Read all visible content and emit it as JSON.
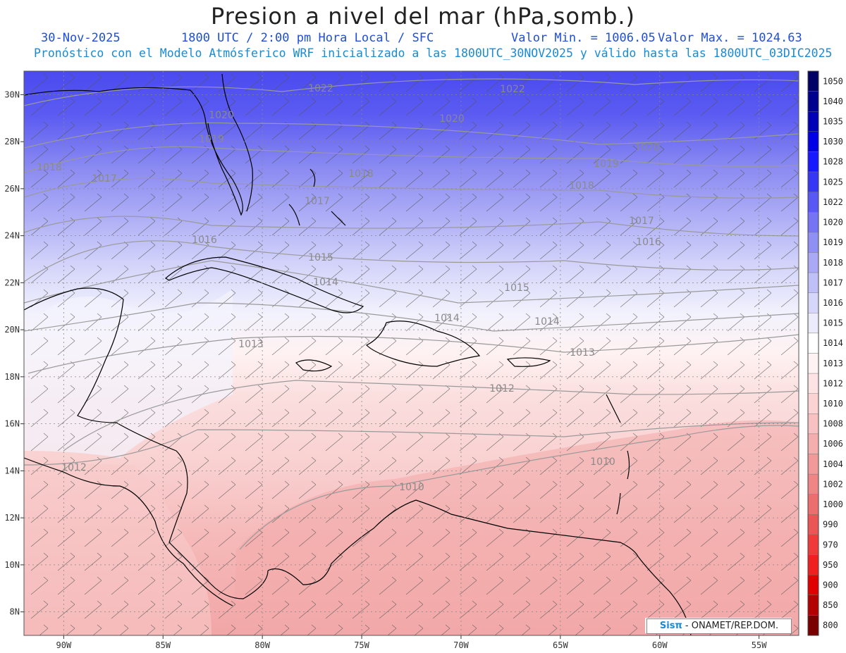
{
  "title": "Presion a nivel del mar (hPa,somb.)",
  "header": {
    "date": "30-Nov-2025",
    "time": "1800 UTC / 2:00 pm Hora Local / SFC",
    "min_label": "Valor Min. = 1006.05",
    "max_label": "Valor Max. = 1024.63",
    "forecast": "Pronóstico con el Modelo Atmósferico WRF inicializado a las 1800UTC_30NOV2025 y válido hasta las  1800UTC_03DIC2025"
  },
  "map": {
    "lat_range": [
      7,
      31
    ],
    "lon_range": [
      -92,
      -53
    ],
    "lat_ticks": [
      "30N",
      "28N",
      "26N",
      "24N",
      "22N",
      "20N",
      "18N",
      "16N",
      "14N",
      "12N",
      "10N",
      "8N"
    ],
    "lon_ticks": [
      "90W",
      "85W",
      "80W",
      "75W",
      "70W",
      "65W",
      "60W",
      "55W"
    ],
    "contour_labels": [
      "1022",
      "1022",
      "1020",
      "1020",
      "1020",
      "1019",
      "1019",
      "1018",
      "1018",
      "1018",
      "1017",
      "1017",
      "1017",
      "1016",
      "1016",
      "1015",
      "1015",
      "1014",
      "1014",
      "1014",
      "1013",
      "1013",
      "1012",
      "1012",
      "1010",
      "1010"
    ],
    "colors": {
      "high": "#4a4af0",
      "neutral": "#ffffff",
      "low": "#f3a3a3",
      "coast": "#000000",
      "contour": "#9a9a9a"
    }
  },
  "colorbar": {
    "levels": [
      "1050",
      "1040",
      "1035",
      "1030",
      "1028",
      "1025",
      "1022",
      "1020",
      "1019",
      "1018",
      "1017",
      "1016",
      "1015",
      "1014",
      "1013",
      "1012",
      "1010",
      "1008",
      "1006",
      "1004",
      "1002",
      "1000",
      "990",
      "970",
      "950",
      "900",
      "850",
      "800"
    ],
    "colors": [
      "#000066",
      "#00008e",
      "#0000b8",
      "#0000e6",
      "#1818ff",
      "#3636f5",
      "#5858f5",
      "#7474f4",
      "#8f8ff4",
      "#a9a9f6",
      "#c0c0f8",
      "#d6d6fa",
      "#ebebfc",
      "#ffffff",
      "#fff2f2",
      "#fde3e3",
      "#fbd3d3",
      "#f8c2c2",
      "#f5aeae",
      "#f29a9a",
      "#ef8585",
      "#ec6e6e",
      "#ea5555",
      "#f03a3a",
      "#f02020",
      "#e00000",
      "#b30000",
      "#7a0000"
    ]
  },
  "credit": {
    "brand": "Sisπ",
    "text": " - ONAMET/REP.DOM."
  }
}
